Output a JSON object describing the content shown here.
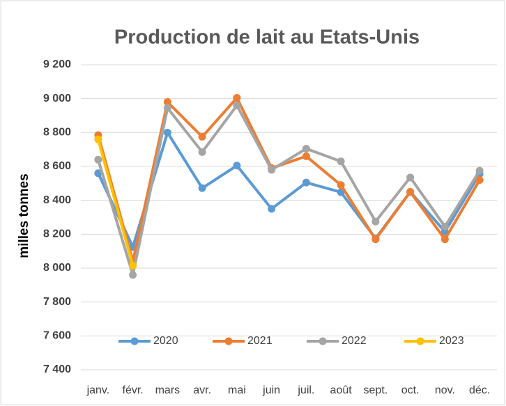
{
  "chart_data": {
    "type": "line",
    "title": "Production de lait au Etats-Unis",
    "y_label": "milles tonnes",
    "categories": [
      "janv.",
      "févr.",
      "mars",
      "avr.",
      "mai",
      "juin",
      "juil.",
      "août",
      "sept.",
      "oct.",
      "nov.",
      "déc."
    ],
    "series": [
      {
        "name": "2020",
        "color": "#5b9bd5",
        "values": [
          8560,
          8125,
          8800,
          8472,
          8605,
          8350,
          8505,
          8448,
          8175,
          8450,
          8215,
          8555
        ]
      },
      {
        "name": "2021",
        "color": "#ed7d31",
        "values": [
          8785,
          8040,
          8980,
          8775,
          9005,
          8590,
          8660,
          8490,
          8170,
          8450,
          8170,
          8520
        ]
      },
      {
        "name": "2022",
        "color": "#a5a5a5",
        "values": [
          8640,
          7960,
          8945,
          8685,
          8960,
          8580,
          8705,
          8630,
          8275,
          8535,
          8245,
          8575
        ]
      },
      {
        "name": "2023",
        "color": "#ffc000",
        "values": [
          8760,
          8015,
          null,
          null,
          null,
          null,
          null,
          null,
          null,
          null,
          null,
          null
        ]
      }
    ],
    "ylim": [
      7400,
      9200
    ],
    "yticks": [
      {
        "value": 7400,
        "label": "7 400"
      },
      {
        "value": 7600,
        "label": "7 600"
      },
      {
        "value": 7800,
        "label": "7 800"
      },
      {
        "value": 8000,
        "label": "8 000"
      },
      {
        "value": 8200,
        "label": "8 200"
      },
      {
        "value": 8400,
        "label": "8 400"
      },
      {
        "value": 8600,
        "label": "8 600"
      },
      {
        "value": 8800,
        "label": "8 800"
      },
      {
        "value": 9000,
        "label": "9 000"
      },
      {
        "value": 9200,
        "label": "9 200"
      }
    ],
    "grid": true,
    "legend": "bottom"
  }
}
